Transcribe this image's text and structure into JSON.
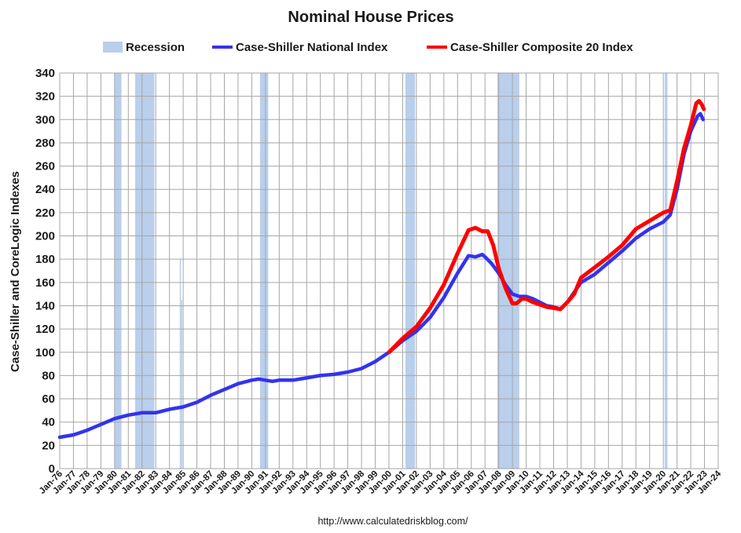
{
  "chart_data": {
    "type": "line",
    "title": "Nominal House Prices",
    "ylabel": "Case-Shiller and CoreLogic Indexes",
    "xlabel": "",
    "source": "http://www.calculatedriskblog.com/",
    "ylim": [
      0,
      340
    ],
    "yticks": [
      0,
      20,
      40,
      60,
      80,
      100,
      120,
      140,
      160,
      180,
      200,
      220,
      240,
      260,
      280,
      300,
      320,
      340
    ],
    "xlim": [
      1976,
      2024
    ],
    "xtick_labels": [
      "Jan-76",
      "Jan-77",
      "Jan-78",
      "Jan-79",
      "Jan-80",
      "Jan-81",
      "Jan-82",
      "Jan-83",
      "Jan-84",
      "Jan-85",
      "Jan-86",
      "Jan-87",
      "Jan-88",
      "Jan-89",
      "Jan-90",
      "Jan-91",
      "Jan-92",
      "Jan-93",
      "Jan-94",
      "Jan-95",
      "Jan-96",
      "Jan-97",
      "Jan-98",
      "Jan-99",
      "Jan-00",
      "Jan-01",
      "Jan-02",
      "Jan-03",
      "Jan-04",
      "Jan-05",
      "Jan-06",
      "Jan-07",
      "Jan-08",
      "Jan-09",
      "Jan-10",
      "Jan-11",
      "Jan-12",
      "Jan-13",
      "Jan-14",
      "Jan-15",
      "Jan-16",
      "Jan-17",
      "Jan-18",
      "Jan-19",
      "Jan-20",
      "Jan-21",
      "Jan-22",
      "Jan-23",
      "Jan-24"
    ],
    "grid": true,
    "legend": "top",
    "recession": {
      "name": "Recession",
      "color": "#b9cfec",
      "periods": [
        [
          1980.0,
          1980.5
        ],
        [
          1981.5,
          1982.9
        ],
        [
          1990.6,
          1991.2
        ],
        [
          2001.2,
          2001.9
        ],
        [
          2007.9,
          2009.5
        ],
        [
          2020.1,
          2020.3
        ]
      ],
      "spikes": [
        {
          "x": 1984.75,
          "y_top": 180
        },
        {
          "x": 1984.85,
          "y_top": 145
        }
      ]
    },
    "series": [
      {
        "name": "Case-Shiller National Index",
        "color": "#3333ee",
        "x": [
          1976.0,
          1977.0,
          1978.0,
          1979.0,
          1980.0,
          1981.0,
          1982.0,
          1983.0,
          1984.0,
          1985.0,
          1986.0,
          1987.0,
          1988.0,
          1989.0,
          1990.0,
          1990.5,
          1991.0,
          1991.5,
          1992.0,
          1993.0,
          1994.0,
          1995.0,
          1996.0,
          1997.0,
          1998.0,
          1999.0,
          2000.0,
          2001.0,
          2002.0,
          2003.0,
          2004.0,
          2005.0,
          2005.8,
          2006.3,
          2006.8,
          2007.0,
          2007.5,
          2008.0,
          2008.5,
          2009.0,
          2009.5,
          2010.0,
          2010.5,
          2011.0,
          2011.5,
          2012.0,
          2012.5,
          2013.0,
          2014.0,
          2015.0,
          2016.0,
          2017.0,
          2018.0,
          2019.0,
          2020.0,
          2020.5,
          2021.0,
          2021.5,
          2022.0,
          2022.5,
          2022.7,
          2022.9
        ],
        "values": [
          27,
          29,
          33,
          38,
          43,
          46,
          48,
          48,
          51,
          53,
          57,
          63,
          68,
          73,
          76,
          77,
          76,
          75,
          76,
          76,
          78,
          80,
          81,
          83,
          86,
          92,
          100,
          110,
          118,
          130,
          147,
          168,
          183,
          182,
          184,
          182,
          176,
          168,
          158,
          150,
          148,
          148,
          146,
          143,
          140,
          139,
          137,
          143,
          160,
          167,
          177,
          187,
          198,
          206,
          212,
          218,
          240,
          270,
          290,
          303,
          305,
          300
        ]
      },
      {
        "name": "Case-Shiller Composite 20 Index",
        "color": "#ff0000",
        "x": [
          2000.0,
          2001.0,
          2002.0,
          2003.0,
          2004.0,
          2005.0,
          2005.8,
          2006.3,
          2006.8,
          2007.2,
          2007.6,
          2008.0,
          2008.5,
          2009.0,
          2009.3,
          2009.7,
          2010.0,
          2010.5,
          2011.0,
          2011.5,
          2012.0,
          2012.5,
          2013.0,
          2013.5,
          2014.0,
          2015.0,
          2016.0,
          2017.0,
          2018.0,
          2019.0,
          2020.0,
          2020.5,
          2021.0,
          2021.5,
          2022.0,
          2022.4,
          2022.6,
          2022.8,
          2022.95
        ],
        "values": [
          100,
          112,
          122,
          138,
          158,
          185,
          205,
          207,
          204,
          204,
          192,
          172,
          155,
          142,
          142,
          146,
          146,
          143,
          141,
          139,
          138,
          137,
          143,
          150,
          164,
          173,
          182,
          192,
          206,
          213,
          220,
          222,
          247,
          275,
          295,
          314,
          316,
          313,
          309
        ]
      }
    ]
  }
}
